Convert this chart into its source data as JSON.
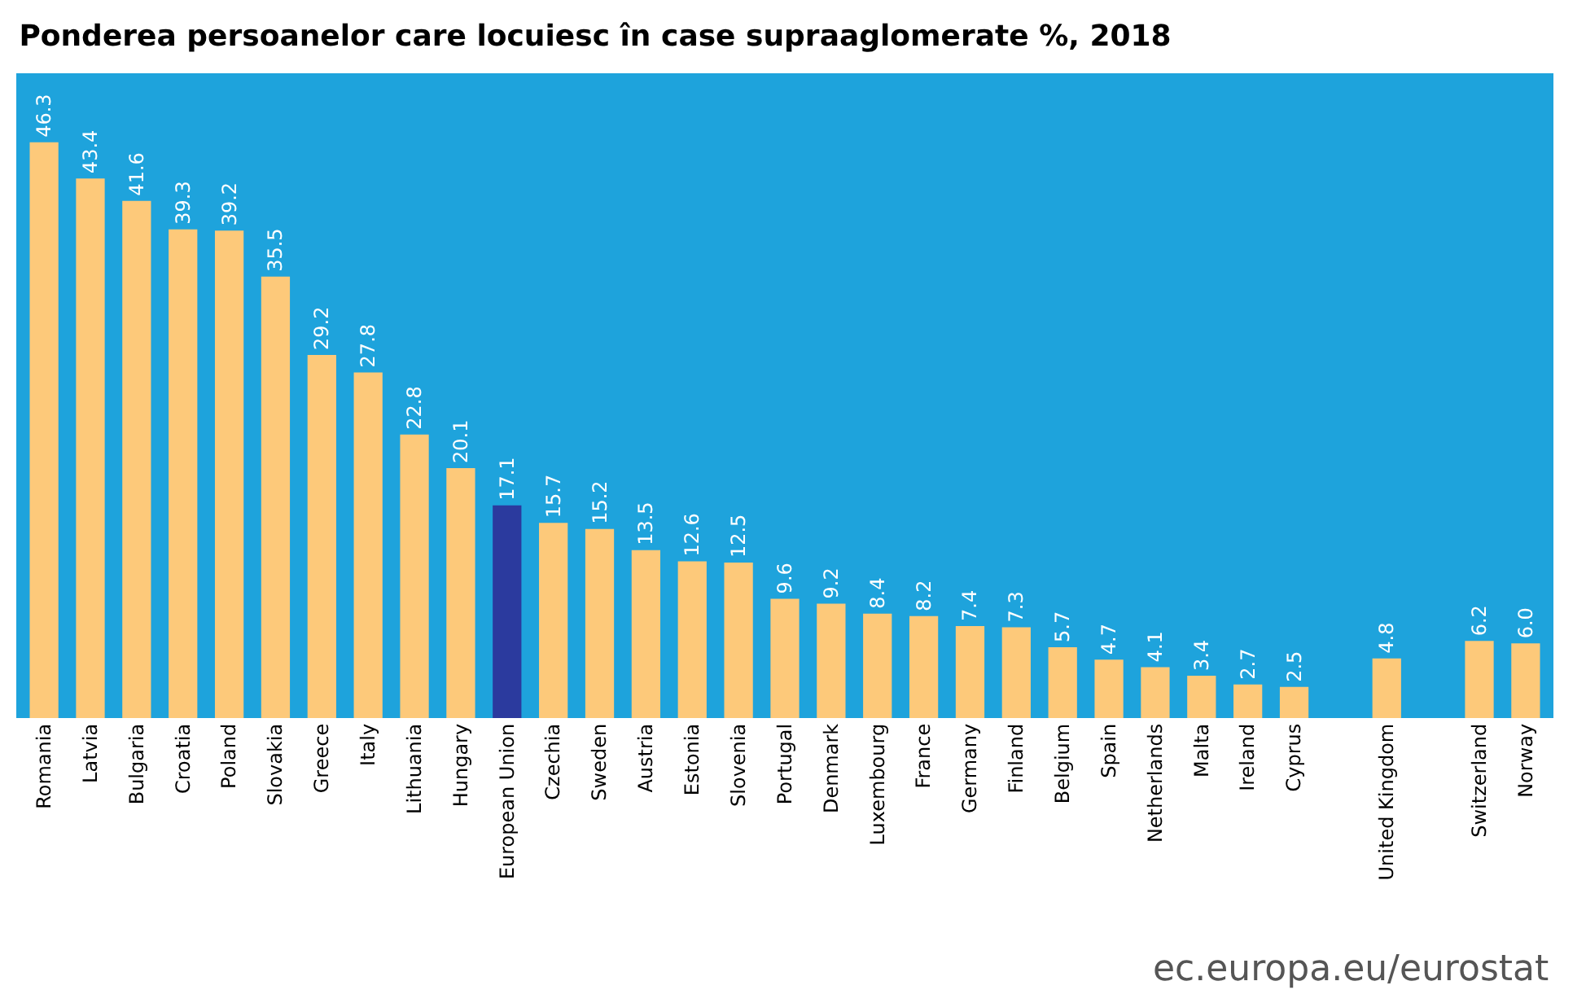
{
  "chart_data": {
    "type": "bar",
    "title": "Ponderea persoanelor care locuiesc în case supraaglomerate %, 2018",
    "categories": [
      "Romania",
      "Latvia",
      "Bulgaria",
      "Croatia",
      "Poland",
      "Slovakia",
      "Greece",
      "Italy",
      "Lithuania",
      "Hungary",
      "European Union",
      "Czechia",
      "Sweden",
      "Austria",
      "Estonia",
      "Slovenia",
      "Portugal",
      "Denmark",
      "Luxembourg",
      "France",
      "Germany",
      "Finland",
      "Belgium",
      "Spain",
      "Netherlands",
      "Malta",
      "Ireland",
      "Cyprus",
      null,
      "United Kingdom",
      null,
      "Switzerland",
      "Norway"
    ],
    "values": [
      46.3,
      43.4,
      41.6,
      39.3,
      39.2,
      35.5,
      29.2,
      27.8,
      22.8,
      20.1,
      17.1,
      15.7,
      15.2,
      13.5,
      12.6,
      12.5,
      9.6,
      9.2,
      8.4,
      8.2,
      7.4,
      7.3,
      5.7,
      4.7,
      4.1,
      3.4,
      2.7,
      2.5,
      null,
      4.8,
      null,
      6.2,
      6.0
    ],
    "value_labels": [
      "46.3",
      "43.4",
      "41.6",
      "39.3",
      "39.2",
      "35.5",
      "29.2",
      "27.8",
      "22.8",
      "20.1",
      "17.1",
      "15.7",
      "15.2",
      "13.5",
      "12.6",
      "12.5",
      "9.6",
      "9.2",
      "8.4",
      "8.2",
      "7.4",
      "7.3",
      "5.7",
      "4.7",
      "4.1",
      "3.4",
      "2.7",
      "2.5",
      null,
      "4.8",
      null,
      "6.2",
      "6.0"
    ],
    "colors": [
      "#fdc97a",
      "#fdc97a",
      "#fdc97a",
      "#fdc97a",
      "#fdc97a",
      "#fdc97a",
      "#fdc97a",
      "#fdc97a",
      "#fdc97a",
      "#fdc97a",
      "#2b3a9e",
      "#fdc97a",
      "#fdc97a",
      "#fdc97a",
      "#fdc97a",
      "#fdc97a",
      "#fdc97a",
      "#fdc97a",
      "#fdc97a",
      "#fdc97a",
      "#fdc97a",
      "#fdc97a",
      "#fdc97a",
      "#fdc97a",
      "#fdc97a",
      "#fdc97a",
      "#fdc97a",
      "#fdc97a",
      "#fdc97a",
      "#fdc97a",
      "#fdc97a",
      "#fdc97a",
      "#fdc97a"
    ],
    "annotations": [
      "ec.europa.eu/eurostat"
    ],
    "grid": false,
    "legend": false
  }
}
